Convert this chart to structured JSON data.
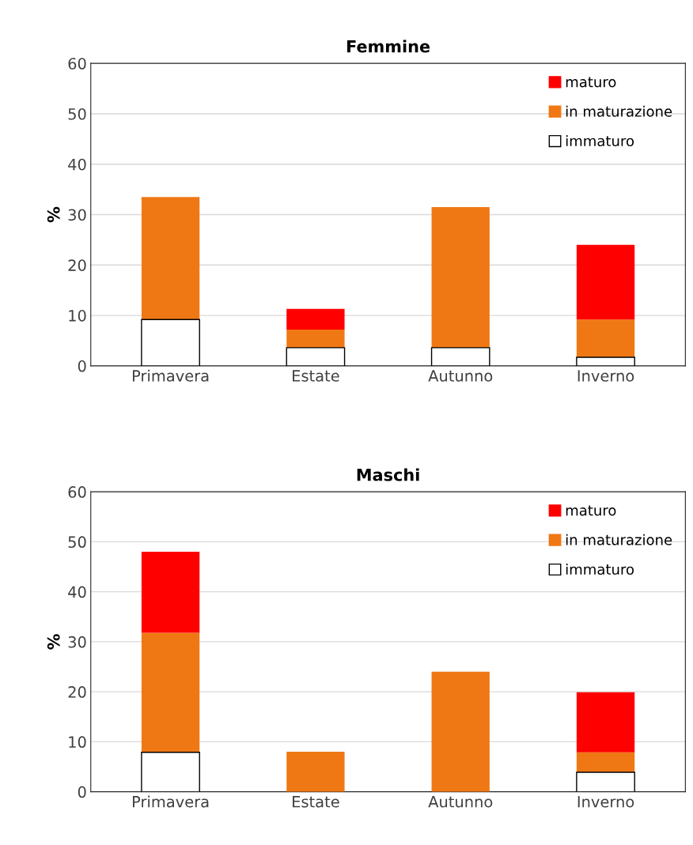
{
  "chart_data": [
    {
      "type": "bar",
      "title": "Femmine",
      "ylabel": "%",
      "categories": [
        "Primavera",
        "Estate",
        "Autunno",
        "Inverno"
      ],
      "stacked": true,
      "ylim": [
        0,
        60
      ],
      "yticks": [
        0,
        10,
        20,
        30,
        40,
        50,
        60
      ],
      "grid": "y",
      "legend": "top right",
      "series": [
        {
          "name": "immaturo",
          "color": "#ffffff",
          "values": [
            9.2,
            3.6,
            3.6,
            1.7
          ]
        },
        {
          "name": "in maturazione",
          "color": "#f07814",
          "values": [
            24.3,
            3.6,
            27.9,
            7.5
          ]
        },
        {
          "name": "maturo",
          "color": "#ff0000",
          "values": [
            null,
            4.1,
            null,
            14.8
          ]
        }
      ]
    },
    {
      "type": "bar",
      "title": "Maschi",
      "ylabel": "%",
      "categories": [
        "Primavera",
        "Estate",
        "Autunno",
        "Inverno"
      ],
      "stacked": true,
      "ylim": [
        0,
        60
      ],
      "yticks": [
        0,
        10,
        20,
        30,
        40,
        50,
        60
      ],
      "grid": "y",
      "legend": "top right",
      "series": [
        {
          "name": "immaturo",
          "color": "#ffffff",
          "values": [
            7.9,
            null,
            null,
            3.9
          ]
        },
        {
          "name": "in maturazione",
          "color": "#f07814",
          "values": [
            23.9,
            8.0,
            24.0,
            4.0
          ]
        },
        {
          "name": "maturo",
          "color": "#ff0000",
          "values": [
            16.2,
            null,
            null,
            12.0
          ]
        }
      ]
    }
  ]
}
